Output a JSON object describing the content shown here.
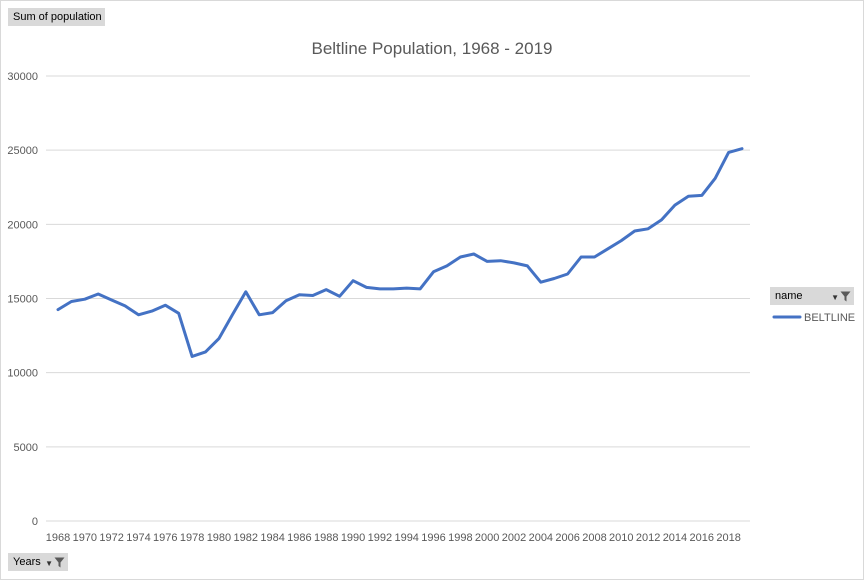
{
  "chart_data": {
    "type": "line",
    "title": "Beltline Population, 1968 - 2019",
    "xlabel": "",
    "ylabel": "",
    "ylim": [
      0,
      30000
    ],
    "y_ticks": [
      "0",
      "5000",
      "10000",
      "15000",
      "20000",
      "25000",
      "30000"
    ],
    "x_tick_labels": [
      "1968",
      "1970",
      "1972",
      "1974",
      "1976",
      "1978",
      "1980",
      "1982",
      "1984",
      "1986",
      "1988",
      "1990",
      "1992",
      "1994",
      "1996",
      "1998",
      "2000",
      "2002",
      "2004",
      "2006",
      "2008",
      "2010",
      "2012",
      "2014",
      "2016",
      "2018"
    ],
    "x": [
      1968,
      1969,
      1970,
      1971,
      1972,
      1973,
      1974,
      1975,
      1976,
      1977,
      1978,
      1979,
      1980,
      1981,
      1982,
      1983,
      1984,
      1985,
      1986,
      1987,
      1988,
      1989,
      1990,
      1991,
      1992,
      1993,
      1994,
      1995,
      1996,
      1997,
      1998,
      1999,
      2000,
      2001,
      2002,
      2003,
      2004,
      2005,
      2006,
      2007,
      2008,
      2009,
      2010,
      2011,
      2012,
      2013,
      2014,
      2015,
      2016,
      2017,
      2018,
      2019
    ],
    "series": [
      {
        "name": "BELTLINE",
        "color": "#4472c4",
        "values": [
          14250,
          14800,
          14950,
          15300,
          14900,
          14500,
          13900,
          14150,
          14550,
          14000,
          11100,
          11400,
          12300,
          13900,
          15450,
          13900,
          14050,
          14850,
          15250,
          15200,
          15600,
          15150,
          16200,
          15750,
          15650,
          15650,
          15700,
          15650,
          16800,
          17200,
          17800,
          18000,
          17500,
          17550,
          17400,
          17200,
          16100,
          16350,
          16650,
          17800,
          17800,
          18350,
          18900,
          19550,
          19700,
          20300,
          21300,
          21900,
          21950,
          23100,
          24850,
          25100
        ]
      }
    ],
    "grid": true,
    "legend_position": "right"
  },
  "buttons": {
    "sum": "Sum of population",
    "years": "Years",
    "name": "name"
  },
  "icons": {
    "filter": "filter-icon",
    "dropdown": "dropdown-arrow-icon"
  }
}
